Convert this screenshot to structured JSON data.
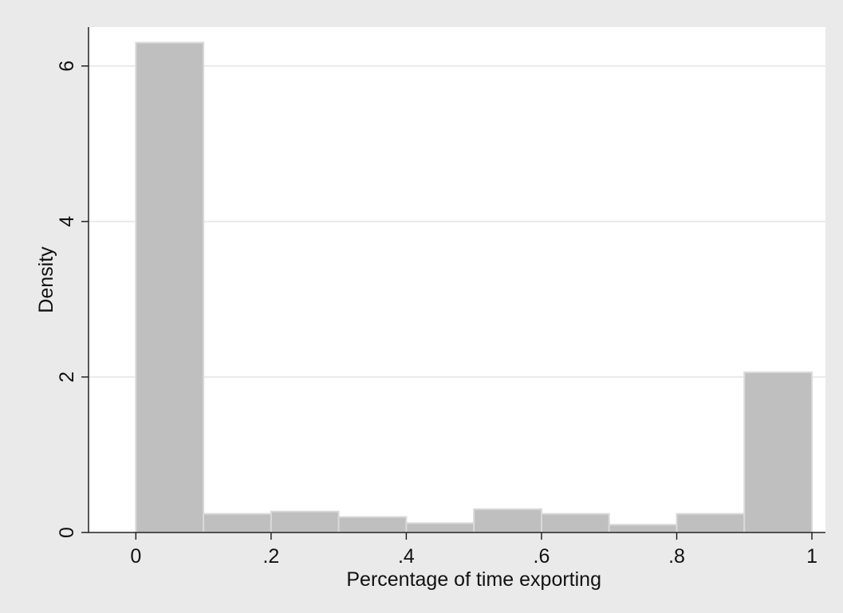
{
  "chart_data": {
    "type": "bar",
    "histogram": true,
    "title": "",
    "xlabel": "Percentage of time exporting",
    "ylabel": "Density",
    "xlim": [
      -0.07,
      1.02
    ],
    "ylim": [
      0,
      6.5
    ],
    "x_ticks": [
      0,
      0.2,
      0.4,
      0.6,
      0.8,
      1
    ],
    "x_tick_labels": [
      "0",
      ".2",
      ".4",
      ".6",
      ".8",
      "1"
    ],
    "y_ticks": [
      0,
      2,
      4,
      6
    ],
    "y_tick_labels": [
      "0",
      "2",
      "4",
      "6"
    ],
    "bin_edges": [
      0,
      0.1,
      0.2,
      0.3,
      0.4,
      0.5,
      0.6,
      0.7,
      0.8,
      0.9,
      1.0
    ],
    "values": [
      6.3,
      0.24,
      0.27,
      0.2,
      0.12,
      0.3,
      0.24,
      0.1,
      0.24,
      2.06
    ],
    "grid": "horizontal",
    "colors": {
      "background": "#eaeaea",
      "plot_background": "#ffffff",
      "bar_fill": "#bfbfbf",
      "bar_edge": "#d9d9d9",
      "grid": "#eaeaea",
      "axis": "#222222"
    }
  }
}
